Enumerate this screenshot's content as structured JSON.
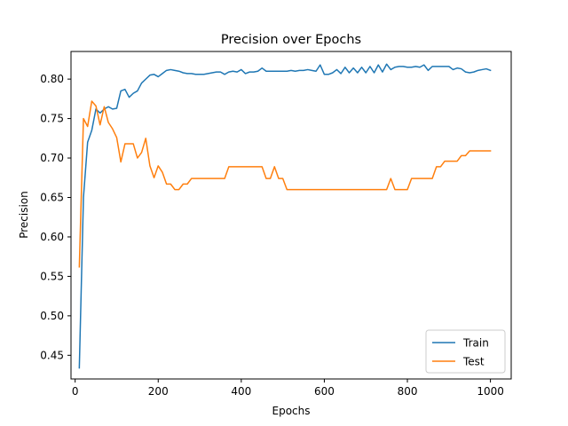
{
  "chart_data": {
    "type": "line",
    "title": "Precision over Epochs",
    "xlabel": "Epochs",
    "ylabel": "Precision",
    "xlim": [
      -10,
      1050
    ],
    "ylim": [
      0.42,
      0.835
    ],
    "xticks": [
      0,
      200,
      400,
      600,
      800,
      1000
    ],
    "yticks": [
      0.45,
      0.5,
      0.55,
      0.6,
      0.65,
      0.7,
      0.75,
      0.8
    ],
    "ytick_labels": [
      "0.45",
      "0.50",
      "0.55",
      "0.60",
      "0.65",
      "0.70",
      "0.75",
      "0.80"
    ],
    "grid": false,
    "legend_position": "lower-right",
    "x": [
      10,
      20,
      30,
      40,
      50,
      60,
      70,
      80,
      90,
      100,
      110,
      120,
      130,
      140,
      150,
      160,
      170,
      180,
      190,
      200,
      210,
      220,
      230,
      240,
      250,
      260,
      270,
      280,
      290,
      300,
      310,
      320,
      330,
      340,
      350,
      360,
      370,
      380,
      390,
      400,
      410,
      420,
      430,
      440,
      450,
      460,
      470,
      480,
      490,
      500,
      510,
      520,
      530,
      540,
      550,
      560,
      570,
      580,
      590,
      600,
      610,
      620,
      630,
      640,
      650,
      660,
      670,
      680,
      690,
      700,
      710,
      720,
      730,
      740,
      750,
      760,
      770,
      780,
      790,
      800,
      810,
      820,
      830,
      840,
      850,
      860,
      870,
      880,
      890,
      900,
      910,
      920,
      930,
      940,
      950,
      960,
      970,
      980,
      990,
      1000
    ],
    "series": [
      {
        "name": "Train",
        "color": "#1f77b4",
        "values": [
          0.434,
          0.65,
          0.72,
          0.735,
          0.762,
          0.757,
          0.762,
          0.765,
          0.762,
          0.763,
          0.785,
          0.787,
          0.777,
          0.782,
          0.785,
          0.795,
          0.8,
          0.805,
          0.806,
          0.803,
          0.807,
          0.811,
          0.812,
          0.811,
          0.81,
          0.808,
          0.807,
          0.807,
          0.806,
          0.806,
          0.806,
          0.807,
          0.808,
          0.809,
          0.809,
          0.806,
          0.809,
          0.81,
          0.809,
          0.812,
          0.807,
          0.809,
          0.809,
          0.81,
          0.814,
          0.81,
          0.81,
          0.81,
          0.81,
          0.81,
          0.81,
          0.811,
          0.81,
          0.811,
          0.811,
          0.812,
          0.811,
          0.81,
          0.818,
          0.806,
          0.806,
          0.808,
          0.812,
          0.807,
          0.815,
          0.808,
          0.814,
          0.808,
          0.815,
          0.808,
          0.816,
          0.808,
          0.818,
          0.809,
          0.819,
          0.812,
          0.815,
          0.816,
          0.816,
          0.815,
          0.815,
          0.816,
          0.815,
          0.818,
          0.811,
          0.816,
          0.816,
          0.816,
          0.816,
          0.816,
          0.812,
          0.814,
          0.813,
          0.809,
          0.808,
          0.809,
          0.811,
          0.812,
          0.813,
          0.811
        ]
      },
      {
        "name": "Test",
        "color": "#ff7f0e",
        "values": [
          0.562,
          0.75,
          0.74,
          0.772,
          0.766,
          0.742,
          0.765,
          0.745,
          0.737,
          0.726,
          0.695,
          0.718,
          0.718,
          0.718,
          0.7,
          0.707,
          0.725,
          0.69,
          0.675,
          0.69,
          0.682,
          0.667,
          0.667,
          0.66,
          0.66,
          0.667,
          0.667,
          0.674,
          0.674,
          0.674,
          0.674,
          0.674,
          0.674,
          0.674,
          0.674,
          0.674,
          0.689,
          0.689,
          0.689,
          0.689,
          0.689,
          0.689,
          0.689,
          0.689,
          0.689,
          0.674,
          0.674,
          0.689,
          0.674,
          0.674,
          0.66,
          0.66,
          0.66,
          0.66,
          0.66,
          0.66,
          0.66,
          0.66,
          0.66,
          0.66,
          0.66,
          0.66,
          0.66,
          0.66,
          0.66,
          0.66,
          0.66,
          0.66,
          0.66,
          0.66,
          0.66,
          0.66,
          0.66,
          0.66,
          0.66,
          0.674,
          0.66,
          0.66,
          0.66,
          0.66,
          0.674,
          0.674,
          0.674,
          0.674,
          0.674,
          0.674,
          0.689,
          0.689,
          0.696,
          0.696,
          0.696,
          0.696,
          0.703,
          0.703,
          0.709,
          0.709,
          0.709,
          0.709,
          0.709,
          0.709
        ]
      }
    ]
  }
}
